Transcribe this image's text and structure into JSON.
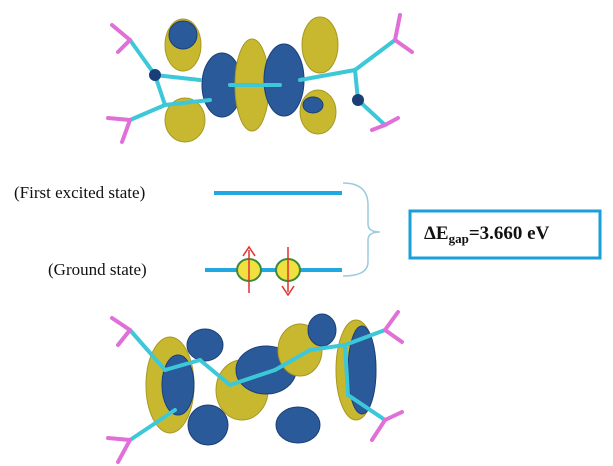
{
  "labels": {
    "excited": "(First excited state)",
    "ground": "(Ground state)"
  },
  "gap": {
    "symbol": "ΔE",
    "subscript": "gap",
    "value": "=3.660 eV"
  }
}
